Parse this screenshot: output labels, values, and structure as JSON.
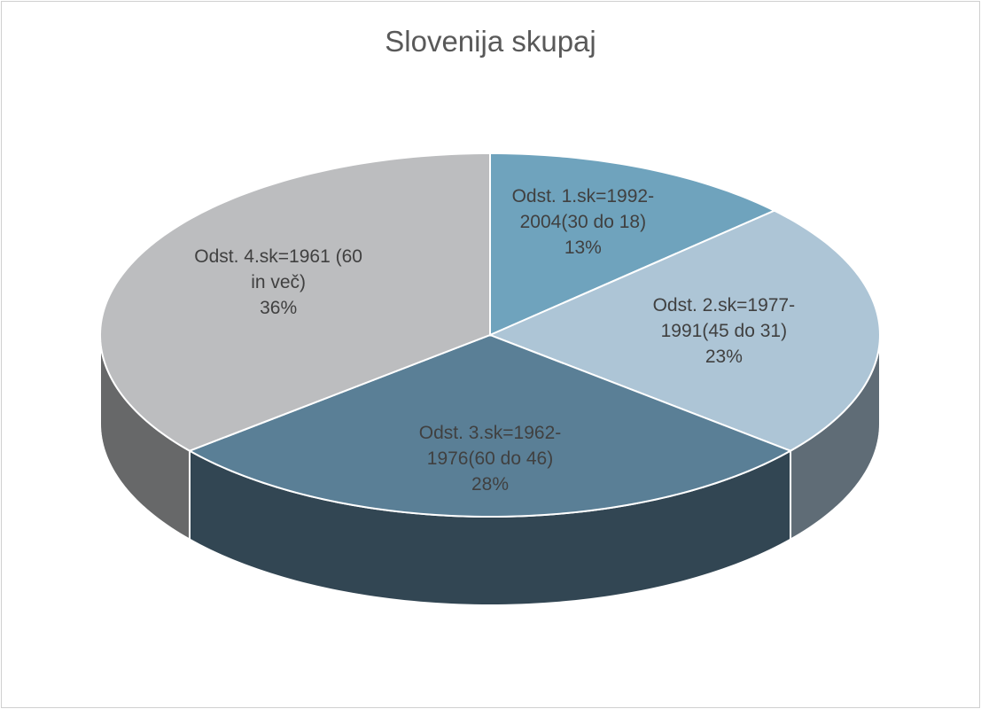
{
  "chart_data": {
    "type": "pie3d",
    "title": "Slovenija skupaj",
    "categories": [
      "Odst. 1.sk=1992-2004(30 do 18)",
      "Odst. 2.sk=1977-1991(45 do 31)",
      "Odst. 3.sk=1962-1976(60 do 46)",
      "Odst. 4.sk=1961 (60 in več)"
    ],
    "values": [
      13,
      23,
      28,
      36
    ],
    "value_labels": [
      "13%",
      "23%",
      "28%",
      "36%"
    ],
    "colors": [
      "#6fa3bd",
      "#adc5d6",
      "#5a7f96",
      "#bcbdbf"
    ]
  }
}
